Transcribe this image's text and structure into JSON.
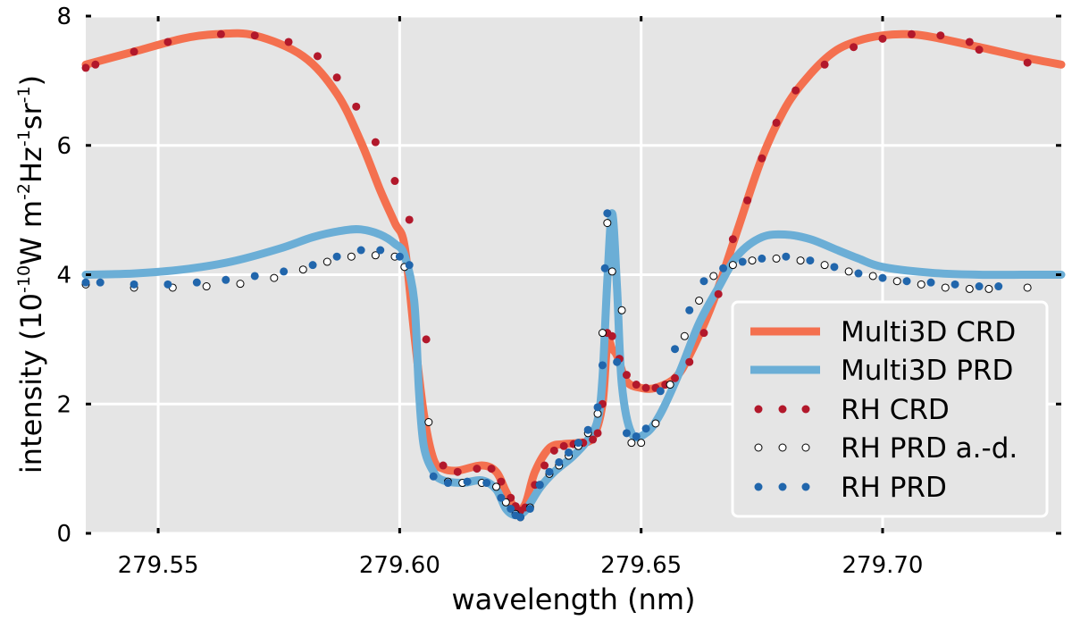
{
  "chart_data": {
    "type": "line",
    "title": "",
    "xlabel": "wavelength (nm)",
    "ylabel": {
      "prefix": "intensity (10",
      "exp1": "-10",
      "mid1": "W m",
      "exp2": "-2",
      "mid2": "Hz",
      "exp3": "-1",
      "mid3": "sr",
      "exp4": "-1",
      "suffix": ")"
    },
    "xlim": [
      279.535,
      279.737
    ],
    "ylim": [
      0,
      8
    ],
    "xticks": [
      279.55,
      279.6,
      279.65,
      279.7
    ],
    "xtick_labels": [
      "279.55",
      "279.60",
      "279.65",
      "279.70"
    ],
    "yticks": [
      0,
      2,
      4,
      6,
      8
    ],
    "ytick_labels": [
      "0",
      "2",
      "4",
      "6",
      "8"
    ],
    "grid": true,
    "legend_position": "bottom-right",
    "colors": {
      "panel_bg": "#e5e5e5",
      "grid": "#ffffff",
      "crd_line": "#f4704f",
      "prd_line": "#6baed6",
      "rh_crd": "#b2182b",
      "rh_prd_ad_fill": "#ffffff",
      "rh_prd_ad_stroke": "#000000",
      "rh_prd": "#2166ac"
    },
    "series": [
      {
        "name": "Multi3D CRD",
        "style": "line",
        "x": [
          279.535,
          279.545,
          279.555,
          279.562,
          279.57,
          279.58,
          279.587,
          279.592,
          279.596,
          279.599,
          279.601,
          279.603,
          279.605,
          279.607,
          279.609,
          279.612,
          279.617,
          279.62,
          279.622,
          279.624,
          279.626,
          279.628,
          279.631,
          279.634,
          279.637,
          279.64,
          279.642,
          279.643,
          279.644,
          279.645,
          279.647,
          279.65,
          279.653,
          279.657,
          279.66,
          279.665,
          279.67,
          279.675,
          279.68,
          279.685,
          279.69,
          279.695,
          279.7,
          279.705,
          279.71,
          279.72,
          279.73,
          279.737
        ],
        "y": [
          7.25,
          7.45,
          7.65,
          7.72,
          7.7,
          7.38,
          6.8,
          6.05,
          5.3,
          4.8,
          4.45,
          3.1,
          1.85,
          1.15,
          1.0,
          0.97,
          1.05,
          0.95,
          0.65,
          0.38,
          0.45,
          0.95,
          1.32,
          1.38,
          1.4,
          1.48,
          2.0,
          2.95,
          2.85,
          2.75,
          2.35,
          2.25,
          2.25,
          2.4,
          2.75,
          3.6,
          4.7,
          5.8,
          6.6,
          7.1,
          7.45,
          7.62,
          7.7,
          7.72,
          7.68,
          7.52,
          7.35,
          7.25
        ]
      },
      {
        "name": "Multi3D PRD",
        "style": "line",
        "x": [
          279.535,
          279.545,
          279.555,
          279.565,
          279.575,
          279.582,
          279.588,
          279.592,
          279.596,
          279.599,
          279.601,
          279.603,
          279.604,
          279.605,
          279.607,
          279.609,
          279.613,
          279.617,
          279.62,
          279.622,
          279.624,
          279.626,
          279.629,
          279.632,
          279.636,
          279.639,
          279.641,
          279.642,
          279.643,
          279.644,
          279.645,
          279.646,
          279.648,
          279.651,
          279.654,
          279.658,
          279.662,
          279.666,
          279.67,
          279.675,
          279.68,
          279.685,
          279.69,
          279.695,
          279.7,
          279.71,
          279.72,
          279.73,
          279.737
        ],
        "y": [
          4.0,
          4.02,
          4.08,
          4.2,
          4.4,
          4.58,
          4.68,
          4.7,
          4.62,
          4.48,
          4.3,
          3.6,
          2.2,
          1.35,
          0.95,
          0.82,
          0.78,
          0.82,
          0.68,
          0.38,
          0.28,
          0.35,
          0.7,
          0.95,
          1.2,
          1.45,
          1.75,
          2.4,
          3.9,
          4.95,
          3.8,
          2.3,
          1.55,
          1.55,
          1.85,
          2.5,
          3.25,
          3.8,
          4.3,
          4.58,
          4.62,
          4.55,
          4.4,
          4.25,
          4.12,
          4.03,
          4.0,
          4.0,
          4.0
        ]
      },
      {
        "name": "RH CRD",
        "style": "markers",
        "x": [
          279.535,
          279.537,
          279.545,
          279.552,
          279.563,
          279.57,
          279.577,
          279.583,
          279.587,
          279.591,
          279.595,
          279.599,
          279.602,
          279.6055,
          279.609,
          279.612,
          279.616,
          279.619,
          279.621,
          279.623,
          279.624,
          279.625,
          279.626,
          279.628,
          279.63,
          279.632,
          279.634,
          279.636,
          279.638,
          279.64,
          279.641,
          279.642,
          279.643,
          279.644,
          279.6455,
          279.647,
          279.649,
          279.651,
          279.653,
          279.655,
          279.657,
          279.66,
          279.663,
          279.666,
          279.669,
          279.672,
          279.675,
          279.678,
          279.682,
          279.688,
          279.694,
          279.7,
          279.706,
          279.712,
          279.718,
          279.72,
          279.73
        ],
        "y": [
          7.2,
          7.25,
          7.45,
          7.6,
          7.72,
          7.7,
          7.6,
          7.38,
          7.05,
          6.6,
          6.05,
          5.45,
          4.85,
          3.0,
          1.05,
          0.95,
          1.0,
          1.0,
          0.8,
          0.55,
          0.42,
          0.35,
          0.4,
          0.75,
          1.05,
          1.28,
          1.35,
          1.38,
          1.4,
          1.45,
          1.55,
          2.0,
          3.1,
          3.05,
          2.7,
          2.45,
          2.3,
          2.25,
          2.25,
          2.3,
          2.4,
          2.65,
          3.1,
          3.7,
          4.55,
          5.15,
          5.8,
          6.35,
          6.85,
          7.25,
          7.52,
          7.65,
          7.72,
          7.7,
          7.6,
          7.48,
          7.28
        ]
      },
      {
        "name": "RH PRD a.-d.",
        "style": "markers",
        "x": [
          279.535,
          279.545,
          279.553,
          279.56,
          279.567,
          279.574,
          279.58,
          279.585,
          279.59,
          279.595,
          279.599,
          279.601,
          279.606,
          279.61,
          279.613,
          279.617,
          279.62,
          279.622,
          279.624,
          279.625,
          279.627,
          279.629,
          279.631,
          279.633,
          279.635,
          279.637,
          279.639,
          279.641,
          279.642,
          279.643,
          279.644,
          279.646,
          279.648,
          279.65,
          279.653,
          279.656,
          279.659,
          279.662,
          279.665,
          279.669,
          279.673,
          279.678,
          279.683,
          279.688,
          279.693,
          279.698,
          279.703,
          279.708,
          279.713,
          279.718,
          279.722,
          279.73
        ],
        "y": [
          3.85,
          3.8,
          3.8,
          3.82,
          3.86,
          3.95,
          4.08,
          4.2,
          4.28,
          4.3,
          4.28,
          4.12,
          1.72,
          0.8,
          0.78,
          0.78,
          0.72,
          0.48,
          0.3,
          0.25,
          0.4,
          0.75,
          0.92,
          1.05,
          1.2,
          1.35,
          1.55,
          1.85,
          3.1,
          4.8,
          4.05,
          3.45,
          1.4,
          1.4,
          1.7,
          2.3,
          3.05,
          3.6,
          3.98,
          4.15,
          4.22,
          4.25,
          4.22,
          4.15,
          4.05,
          3.98,
          3.9,
          3.85,
          3.8,
          3.78,
          3.78,
          3.8
        ]
      },
      {
        "name": "RH PRD",
        "style": "markers",
        "x": [
          279.535,
          279.538,
          279.545,
          279.552,
          279.558,
          279.564,
          279.57,
          279.576,
          279.582,
          279.587,
          279.592,
          279.596,
          279.6,
          279.602,
          279.607,
          279.61,
          279.614,
          279.618,
          279.621,
          279.623,
          279.624,
          279.625,
          279.627,
          279.629,
          279.631,
          279.633,
          279.635,
          279.637,
          279.639,
          279.641,
          279.642,
          279.6425,
          279.643,
          279.645,
          279.647,
          279.649,
          279.651,
          279.654,
          279.657,
          279.66,
          279.663,
          279.667,
          279.671,
          279.675,
          279.68,
          279.685,
          279.69,
          279.695,
          279.7,
          279.705,
          279.71,
          279.715,
          279.72,
          279.724
        ],
        "y": [
          3.88,
          3.88,
          3.85,
          3.85,
          3.88,
          3.92,
          3.98,
          4.05,
          4.15,
          4.28,
          4.38,
          4.38,
          4.28,
          4.15,
          0.88,
          0.78,
          0.8,
          0.78,
          0.55,
          0.38,
          0.28,
          0.25,
          0.38,
          0.75,
          0.95,
          1.1,
          1.25,
          1.4,
          1.6,
          1.95,
          2.6,
          4.1,
          4.95,
          2.65,
          1.55,
          1.5,
          1.62,
          2.2,
          2.85,
          3.45,
          3.9,
          4.1,
          4.2,
          4.25,
          4.28,
          4.22,
          4.12,
          4.02,
          3.95,
          3.9,
          3.88,
          3.85,
          3.82,
          3.82
        ]
      }
    ]
  }
}
